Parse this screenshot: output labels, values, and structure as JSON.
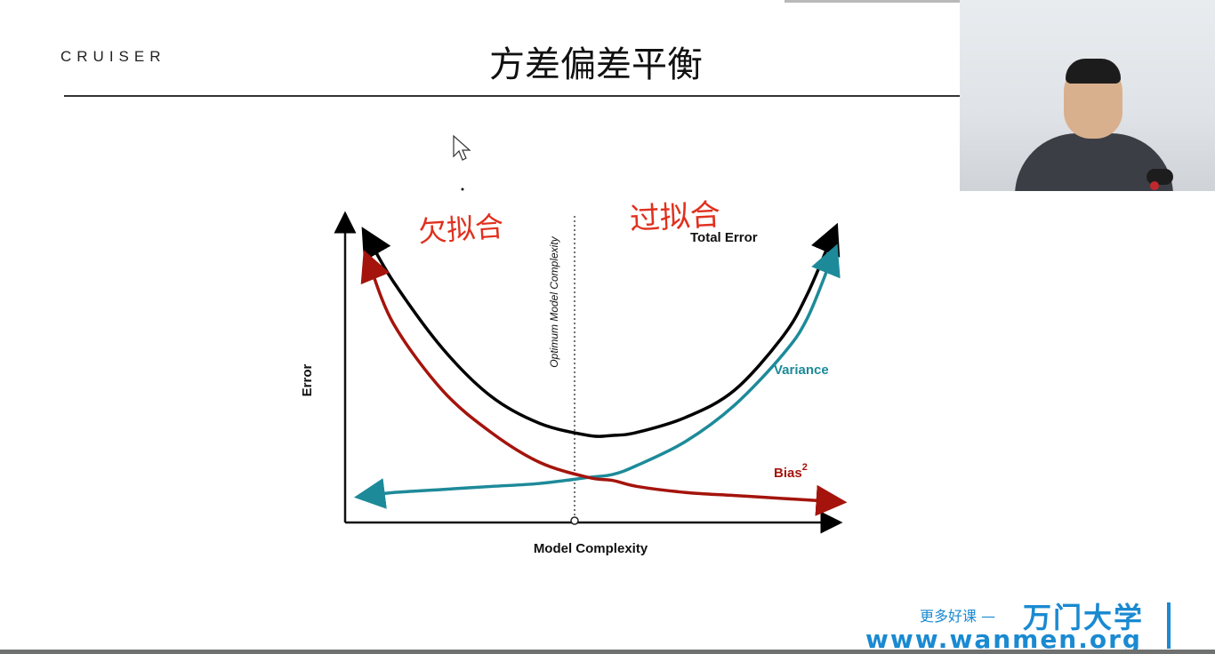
{
  "slide": {
    "brand": "CRUISER",
    "title": "方差偏差平衡"
  },
  "annotations": {
    "left_handwritten": "欠拟合",
    "right_handwritten": "过拟合",
    "color": "#e0301e"
  },
  "chart_data": {
    "type": "line",
    "xlabel": "Model Complexity",
    "ylabel": "Error",
    "optimum_label": "Optimum Model Complexity",
    "x": [
      0.05,
      0.1,
      0.2,
      0.3,
      0.4,
      0.5,
      0.55,
      0.6,
      0.7,
      0.8,
      0.9,
      0.95,
      1.0
    ],
    "series": [
      {
        "name": "Total Error",
        "color": "#000000",
        "values": [
          0.94,
          0.8,
          0.58,
          0.42,
          0.33,
          0.29,
          0.29,
          0.3,
          0.35,
          0.44,
          0.62,
          0.76,
          0.95
        ]
      },
      {
        "name": "Variance",
        "color": "#1d8a99",
        "values": [
          0.09,
          0.1,
          0.11,
          0.12,
          0.13,
          0.15,
          0.16,
          0.19,
          0.27,
          0.39,
          0.56,
          0.68,
          0.88
        ]
      },
      {
        "name": "Bias²",
        "color": "#a4140c",
        "values": [
          0.86,
          0.66,
          0.44,
          0.3,
          0.2,
          0.15,
          0.14,
          0.12,
          0.1,
          0.09,
          0.08,
          0.075,
          0.07
        ]
      }
    ],
    "bias_label_main": "Bias",
    "bias_label_sup": "2",
    "optimum_x": 0.55
  },
  "watermark": {
    "tagline": "更多好课 —",
    "name": "万门大学",
    "url": "www.wanmen.org",
    "color": "#1a8ad1"
  }
}
